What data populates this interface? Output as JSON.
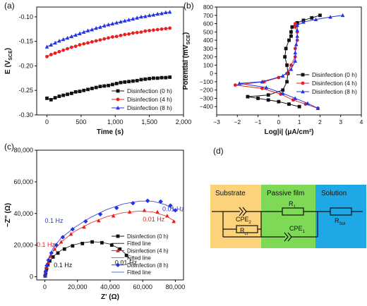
{
  "colors": {
    "black": "#111111",
    "red": "#e8201f",
    "blue": "#2333e6",
    "substrate_fill": "#fcd27a",
    "film_fill": "#7ed957",
    "solution_fill": "#1fa8e6"
  },
  "chart_data": [
    {
      "id": "a",
      "panel_label": "(a)",
      "type": "line",
      "xlabel": "Time (s)",
      "ylabel": "E (V",
      "ylabel_sub": "SCE",
      "ylabel_end": ")",
      "xlim": [
        -150,
        2000
      ],
      "ylim": [
        -0.3,
        -0.08
      ],
      "xticks": [
        0,
        500,
        1000,
        1500,
        2000
      ],
      "xtick_labels": [
        "0",
        "500",
        "1,000",
        "1,500",
        "2,000"
      ],
      "yticks": [
        -0.3,
        -0.25,
        -0.2,
        -0.15,
        -0.1
      ],
      "ytick_labels": [
        "-0.30",
        "-0.25",
        "-0.20",
        "-0.15",
        "-0.10"
      ],
      "legend_position": "bottom-right",
      "series": [
        {
          "name": "Disinfection (0 h)",
          "color": "#111111",
          "marker": "square",
          "x": [
            0,
            60,
            120,
            180,
            240,
            300,
            360,
            420,
            480,
            540,
            600,
            660,
            720,
            780,
            840,
            900,
            960,
            1020,
            1080,
            1140,
            1200,
            1260,
            1320,
            1380,
            1440,
            1500,
            1560,
            1620,
            1680,
            1740,
            1800
          ],
          "y": [
            -0.266,
            -0.269,
            -0.265,
            -0.262,
            -0.26,
            -0.258,
            -0.256,
            -0.253,
            -0.252,
            -0.25,
            -0.248,
            -0.246,
            -0.244,
            -0.242,
            -0.241,
            -0.24,
            -0.238,
            -0.236,
            -0.234,
            -0.233,
            -0.232,
            -0.231,
            -0.23,
            -0.228,
            -0.227,
            -0.226,
            -0.225,
            -0.225,
            -0.224,
            -0.224,
            -0.223
          ]
        },
        {
          "name": "Disinfection (4 h)",
          "color": "#e8201f",
          "marker": "circle",
          "x": [
            0,
            60,
            120,
            180,
            240,
            300,
            360,
            420,
            480,
            540,
            600,
            660,
            720,
            780,
            840,
            900,
            960,
            1020,
            1080,
            1140,
            1200,
            1260,
            1320,
            1380,
            1440,
            1500,
            1560,
            1620,
            1680,
            1740,
            1800
          ],
          "y": [
            -0.181,
            -0.177,
            -0.174,
            -0.171,
            -0.168,
            -0.165,
            -0.162,
            -0.16,
            -0.157,
            -0.155,
            -0.153,
            -0.151,
            -0.149,
            -0.147,
            -0.145,
            -0.143,
            -0.141,
            -0.14,
            -0.138,
            -0.136,
            -0.135,
            -0.133,
            -0.132,
            -0.131,
            -0.129,
            -0.128,
            -0.127,
            -0.126,
            -0.125,
            -0.124,
            -0.123
          ]
        },
        {
          "name": "Disinfection (8 h)",
          "color": "#2333e6",
          "marker": "triangle",
          "x": [
            0,
            60,
            120,
            180,
            240,
            300,
            360,
            420,
            480,
            540,
            600,
            660,
            720,
            780,
            840,
            900,
            960,
            1020,
            1080,
            1140,
            1200,
            1260,
            1320,
            1380,
            1440,
            1500,
            1560,
            1620,
            1680,
            1740,
            1800
          ],
          "y": [
            -0.161,
            -0.157,
            -0.153,
            -0.149,
            -0.146,
            -0.143,
            -0.14,
            -0.137,
            -0.134,
            -0.131,
            -0.128,
            -0.126,
            -0.123,
            -0.121,
            -0.118,
            -0.116,
            -0.114,
            -0.112,
            -0.11,
            -0.108,
            -0.106,
            -0.104,
            -0.102,
            -0.1,
            -0.099,
            -0.097,
            -0.096,
            -0.094,
            -0.093,
            -0.091,
            -0.09
          ]
        }
      ]
    },
    {
      "id": "b",
      "panel_label": "(b)",
      "type": "line",
      "xlabel": "Log|i| (μA/cm²)",
      "ylabel": "Potential (mV",
      "ylabel_sub": "SCE",
      "ylabel_end": ")",
      "xlim": [
        -3,
        4
      ],
      "ylim": [
        -500,
        800
      ],
      "xticks": [
        -3,
        -2,
        -1,
        0,
        1,
        2,
        3,
        4
      ],
      "xtick_labels": [
        "−3",
        "−2",
        "−1",
        "0",
        "1",
        "2",
        "3",
        "4"
      ],
      "yticks": [
        -400,
        -300,
        -200,
        -100,
        0,
        100,
        200,
        300,
        400,
        500,
        600,
        700,
        800
      ],
      "ytick_labels": [
        "−400",
        "−300",
        "−200",
        "−100",
        "0",
        "100",
        "200",
        "300",
        "400",
        "500",
        "600",
        "700",
        "800"
      ],
      "legend_position": "bottom-right",
      "series": [
        {
          "name": "Disinfection (0 h)",
          "color": "#111111",
          "marker": "square",
          "x": [
            1.0,
            0.5,
            0.0,
            -0.5,
            -1.0,
            -1.5,
            -0.5,
            0.2,
            0.4,
            0.45,
            0.4,
            0.3,
            0.35,
            0.5,
            0.6,
            0.6,
            0.65,
            0.9,
            1.2,
            1.6,
            2.0
          ],
          "y": [
            -400,
            -370,
            -340,
            -320,
            -300,
            -280,
            -260,
            -200,
            -100,
            0,
            100,
            200,
            300,
            400,
            450,
            500,
            560,
            610,
            640,
            670,
            700
          ]
        },
        {
          "name": "Disinfection (4 h)",
          "color": "#e8201f",
          "marker": "circle",
          "x": [
            1.9,
            1.3,
            0.7,
            0.1,
            -0.8,
            -2.1,
            -0.7,
            0.0,
            0.4,
            0.6,
            0.8,
            0.8,
            0.9,
            0.9,
            0.8,
            0.8
          ],
          "y": [
            -420,
            -370,
            -320,
            -250,
            -180,
            -140,
            -100,
            -50,
            0,
            100,
            200,
            300,
            400,
            500,
            560,
            600
          ]
        },
        {
          "name": "Disinfection (8 h)",
          "color": "#2333e6",
          "marker": "triangle",
          "x": [
            1.9,
            1.4,
            0.8,
            0.2,
            -0.6,
            -1.9,
            -0.8,
            0.2,
            0.6,
            0.8,
            0.8,
            0.85,
            0.9,
            0.9,
            0.9,
            1.2,
            1.8,
            2.5,
            3.1
          ],
          "y": [
            -420,
            -360,
            -300,
            -240,
            -170,
            -120,
            -100,
            -30,
            50,
            150,
            250,
            350,
            450,
            520,
            580,
            620,
            650,
            680,
            700
          ]
        }
      ]
    },
    {
      "id": "c",
      "panel_label": "(c)",
      "type": "scatter",
      "xlabel": "Z' (Ω)",
      "ylabel": "−Z'' (Ω)",
      "xlim": [
        -5000,
        85000
      ],
      "ylim": [
        -2000,
        80000
      ],
      "xticks": [
        0,
        20000,
        40000,
        60000,
        80000
      ],
      "xtick_labels": [
        "0",
        "20,000",
        "40,000",
        "60,000",
        "80,000"
      ],
      "yticks": [
        0,
        20000,
        40000,
        60000,
        80000
      ],
      "ytick_labels": [
        "0",
        "20,000",
        "40,000",
        "60,000",
        "80,000"
      ],
      "legend_position": "bottom-right",
      "annotations": [
        {
          "text": "0.1 Hz",
          "color": "#2333e6",
          "x": 0,
          "y": 34000
        },
        {
          "text": "0.1 Hz",
          "color": "#e8201f",
          "x": -5000,
          "y": 19000
        },
        {
          "text": "0.1 Hz",
          "color": "#111111",
          "x": 5500,
          "y": 6000
        },
        {
          "text": "0.01 Hz",
          "color": "#2333e6",
          "x": 72000,
          "y": 41500
        },
        {
          "text": "0.01 Hz",
          "color": "#e8201f",
          "x": 60000,
          "y": 35000
        },
        {
          "text": "0.01 Hz",
          "color": "#111111",
          "x": 43000,
          "y": 7500
        }
      ],
      "series": [
        {
          "name": "Disinfection (0 h)",
          "color": "#111111",
          "marker": "square",
          "x": [
            200,
            500,
            1000,
            1800,
            3000,
            5000,
            8000,
            12000,
            17000,
            23000,
            29000,
            35000,
            41000,
            46000,
            50000
          ],
          "y": [
            500,
            2500,
            5000,
            7500,
            10000,
            12500,
            15000,
            17500,
            19500,
            21000,
            22000,
            21500,
            20000,
            17500,
            13500
          ],
          "fit_x": [
            0,
            2000,
            5000,
            10000,
            16000,
            22000,
            28000,
            34000,
            40000,
            46000,
            50000,
            53000
          ],
          "fit_y": [
            0,
            8000,
            12800,
            16800,
            19600,
            21300,
            22100,
            21900,
            20600,
            17600,
            14000,
            10000
          ]
        },
        {
          "name": "Disinfection (4 h)",
          "color": "#e8201f",
          "marker": "triangle",
          "x": [
            200,
            600,
            1200,
            2000,
            3500,
            6000,
            10000,
            16000,
            24000,
            33000,
            42000,
            52000,
            61000,
            69000,
            75000,
            79000
          ],
          "y": [
            600,
            3000,
            6000,
            9000,
            13000,
            17500,
            22000,
            27000,
            31500,
            35500,
            38500,
            41000,
            42000,
            41000,
            38500,
            35000
          ],
          "fit_x": [
            0,
            2000,
            5000,
            10000,
            18000,
            28000,
            38000,
            48000,
            58000,
            66000,
            74000,
            80000
          ],
          "fit_y": [
            0,
            10000,
            16000,
            22000,
            28500,
            34000,
            38000,
            40500,
            41500,
            41000,
            38500,
            35000
          ]
        },
        {
          "name": "Disinfection (8 h)",
          "color": "#2333e6",
          "marker": "diamond",
          "x": [
            200,
            600,
            1200,
            2200,
            4000,
            7000,
            11000,
            17000,
            25000,
            34000,
            44000,
            54000,
            63000,
            71000,
            77000,
            80000
          ],
          "y": [
            700,
            3500,
            7000,
            10500,
            15000,
            20000,
            25000,
            30000,
            35000,
            39500,
            43500,
            46500,
            48000,
            47500,
            45000,
            42000
          ],
          "fit_x": [
            0,
            2000,
            5000,
            10000,
            18000,
            28000,
            38000,
            48000,
            58000,
            66000,
            74000,
            80000
          ],
          "fit_y": [
            0,
            11000,
            18000,
            24500,
            31000,
            37500,
            42500,
            46000,
            47800,
            47800,
            45500,
            42000
          ]
        }
      ]
    },
    {
      "id": "d",
      "panel_label": "(d)",
      "type": "diagram",
      "regions": [
        "Substrate",
        "Passive film",
        "Solution"
      ],
      "components": {
        "cpe2": "CPE",
        "cpe2_sub": "2",
        "r1": "R",
        "r1_sub": "1",
        "rct": "R",
        "rct_sub": "ct",
        "cpe1": "CPE",
        "cpe1_sub": "1",
        "rsol": "R",
        "rsol_sub": "Sol"
      }
    }
  ],
  "legend_fitted_label": "Fitted line"
}
